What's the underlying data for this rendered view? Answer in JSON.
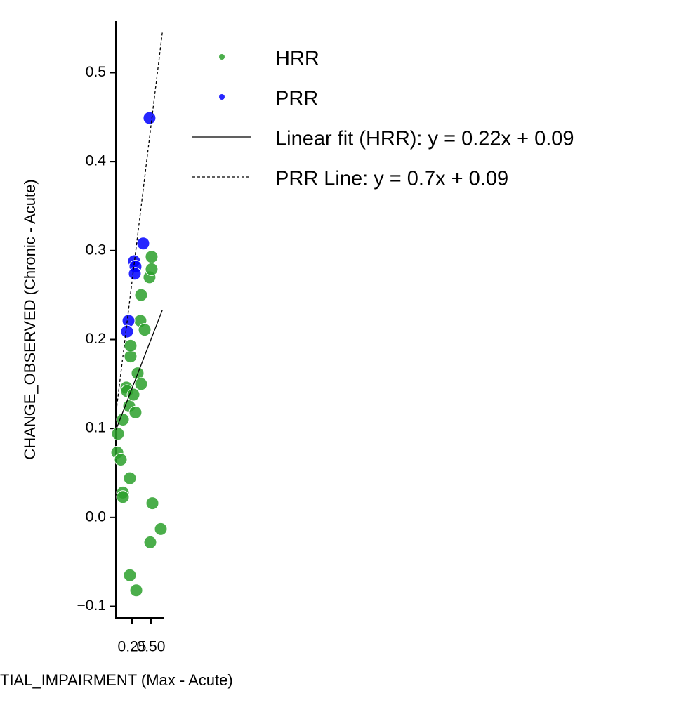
{
  "chart_data": {
    "type": "scatter",
    "x_label": "TIAL_IMPAIRMENT (Max - Acute)",
    "y_label": "CHANGE_OBSERVED (Chronic - Acute)",
    "xlim": [
      0.037,
      0.667
    ],
    "ylim": [
      -0.113,
      0.558
    ],
    "xticks": [
      0.25,
      {
        "value": 0.5,
        "label": "0.50"
      }
    ],
    "yticks": [
      {
        "value": -0.1,
        "label": "−0.1"
      },
      {
        "value": 0,
        "label": "0.0"
      },
      0.1,
      0.2,
      0.3,
      0.4,
      0.5
    ],
    "series": [
      {
        "name": "HRR",
        "color": "#2ca02c",
        "x": [
          0.065,
          0.056,
          0.102,
          0.13,
          0.176,
          0.185,
          0.213,
          0.222,
          0.13,
          0.13,
          0.231,
          0.231,
          0.269,
          0.296,
          0.324,
          0.37,
          0.37,
          0.361,
          0.417,
          0.481,
          0.509,
          0.509,
          0.519,
          0.491,
          0.63,
          0.222,
          0.306
        ],
        "values": [
          0.094,
          0.073,
          0.065,
          0.11,
          0.146,
          0.142,
          0.125,
          0.044,
          0.028,
          0.023,
          0.181,
          0.193,
          0.138,
          0.118,
          0.162,
          0.15,
          0.25,
          0.221,
          0.211,
          0.27,
          0.293,
          0.279,
          0.016,
          -0.028,
          -0.013,
          -0.065,
          -0.082
        ]
      },
      {
        "name": "PRR",
        "color": "#0000ff",
        "x": [
          0.481,
          0.398,
          0.278,
          0.296,
          0.287,
          0.204,
          0.185
        ],
        "values": [
          0.449,
          0.308,
          0.288,
          0.282,
          0.274,
          0.221,
          0.209
        ]
      }
    ],
    "lines": [
      {
        "name": "Linear fit (HRR): y = 0.22x + 0.09",
        "slope": 0.22,
        "intercept": 0.09,
        "x": [
          0.04,
          0.65
        ],
        "dash": false
      },
      {
        "name": "PRR Line: y = 0.7x + 0.09",
        "slope": 0.7,
        "intercept": 0.09,
        "x": [
          0.05,
          0.65
        ],
        "dash": true
      }
    ]
  }
}
